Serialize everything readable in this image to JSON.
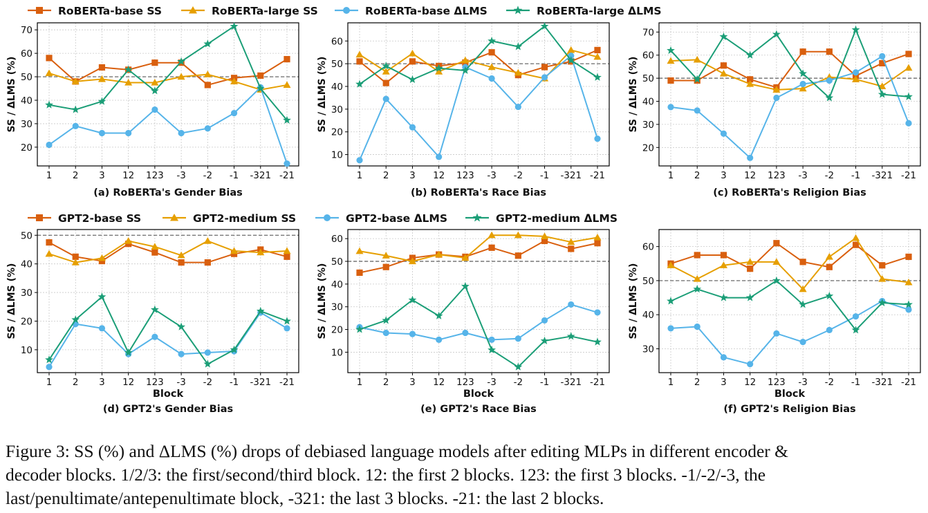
{
  "colors": {
    "orange": "#d95f0e",
    "gold": "#e69f00",
    "blue": "#56b4e9",
    "green": "#1b9e77",
    "refline": "#777777",
    "grid": "#c8c8c8"
  },
  "legends": [
    {
      "entries": [
        {
          "label": "RoBERTa-base SS",
          "color": "#d95f0e",
          "marker": "square"
        },
        {
          "label": "RoBERTa-large SS",
          "color": "#e69f00",
          "marker": "triangle"
        },
        {
          "label": "RoBERTa-base ΔLMS",
          "color": "#56b4e9",
          "marker": "circle"
        },
        {
          "label": "RoBERTa-large ΔLMS",
          "color": "#1b9e77",
          "marker": "star"
        }
      ]
    },
    {
      "entries": [
        {
          "label": "GPT2-base SS",
          "color": "#d95f0e",
          "marker": "square"
        },
        {
          "label": "GPT2-medium SS",
          "color": "#e69f00",
          "marker": "triangle"
        },
        {
          "label": "GPT2-base ΔLMS",
          "color": "#56b4e9",
          "marker": "circle"
        },
        {
          "label": "GPT2-medium ΔLMS",
          "color": "#1b9e77",
          "marker": "star"
        }
      ]
    }
  ],
  "chart_data": [
    {
      "type": "line",
      "title": "(a) RoBERTa's Gender Bias",
      "xlabel": "",
      "ylabel": "SS / ΔLMS (%)",
      "categories": [
        "1",
        "2",
        "3",
        "12",
        "123",
        "-3",
        "-2",
        "-1",
        "-321",
        "-21"
      ],
      "ylim": [
        12,
        73
      ],
      "yticks": [
        20,
        30,
        40,
        50,
        60,
        70
      ],
      "reference_line": 50,
      "grid": true,
      "series": [
        {
          "name": "RoBERTa-base SS",
          "values": [
            58,
            48,
            54,
            53,
            56,
            56,
            46.5,
            49.5,
            50.5,
            57.5
          ]
        },
        {
          "name": "RoBERTa-large SS",
          "values": [
            51.5,
            48,
            49,
            47.5,
            47.5,
            50,
            51,
            48,
            44.5,
            46.5
          ]
        },
        {
          "name": "RoBERTa-base ΔLMS",
          "values": [
            21,
            29,
            26,
            26,
            36,
            26,
            28,
            34.5,
            45.5,
            13
          ]
        },
        {
          "name": "RoBERTa-large ΔLMS",
          "values": [
            38,
            36,
            39.5,
            53,
            44,
            56.5,
            64,
            71.5,
            45,
            31.5
          ]
        }
      ]
    },
    {
      "type": "line",
      "title": "(b) RoBERTa's Race Bias",
      "xlabel": "",
      "ylabel": "SS / ΔLMS (%)",
      "categories": [
        "1",
        "2",
        "3",
        "12",
        "123",
        "-3",
        "-2",
        "-1",
        "-321",
        "-21"
      ],
      "ylim": [
        5,
        68
      ],
      "yticks": [
        10,
        20,
        30,
        40,
        50,
        60
      ],
      "reference_line": 50,
      "grid": true,
      "series": [
        {
          "name": "RoBERTa-base SS",
          "values": [
            51,
            41.5,
            51,
            49,
            50.5,
            55,
            45,
            48.5,
            51,
            56
          ]
        },
        {
          "name": "RoBERTa-large SS",
          "values": [
            54,
            46.5,
            54.5,
            46.5,
            51.5,
            48.5,
            46,
            43.5,
            56,
            53
          ]
        },
        {
          "name": "RoBERTa-base ΔLMS",
          "values": [
            7.5,
            34.5,
            22,
            9,
            48.5,
            43.5,
            31,
            44,
            53.5,
            17
          ]
        },
        {
          "name": "RoBERTa-large ΔLMS",
          "values": [
            41,
            49,
            43,
            48,
            47,
            60,
            57.5,
            66.5,
            51.5,
            44
          ]
        }
      ]
    },
    {
      "type": "line",
      "title": "(c) RoBERTa's Religion Bias",
      "xlabel": "",
      "ylabel": "SS / ΔLMS (%)",
      "categories": [
        "1",
        "2",
        "3",
        "12",
        "123",
        "-3",
        "-2",
        "-1",
        "-321",
        "-21"
      ],
      "ylim": [
        12,
        74
      ],
      "yticks": [
        20,
        30,
        40,
        50,
        60,
        70
      ],
      "reference_line": 50,
      "grid": true,
      "series": [
        {
          "name": "RoBERTa-base SS",
          "values": [
            49,
            49,
            55.5,
            49.5,
            46,
            61.5,
            61.5,
            51,
            56.5,
            60.5
          ]
        },
        {
          "name": "RoBERTa-large SS",
          "values": [
            57.5,
            58,
            52,
            47.5,
            45,
            45.5,
            50.5,
            49.5,
            46.5,
            54.5
          ]
        },
        {
          "name": "RoBERTa-base ΔLMS",
          "values": [
            37.5,
            36,
            26,
            15.5,
            41.5,
            47.5,
            49,
            52.5,
            59.5,
            30.5
          ]
        },
        {
          "name": "RoBERTa-large ΔLMS",
          "values": [
            62,
            49.5,
            68,
            60,
            69,
            52,
            41.5,
            71,
            43,
            42
          ]
        }
      ]
    },
    {
      "type": "line",
      "title": "(d) GPT2's Gender Bias",
      "xlabel": "Block",
      "ylabel": "SS / ΔLMS (%)",
      "categories": [
        "1",
        "2",
        "3",
        "12",
        "123",
        "-3",
        "-2",
        "-1",
        "-321",
        "-21"
      ],
      "ylim": [
        2,
        52
      ],
      "yticks": [
        10,
        20,
        30,
        40,
        50
      ],
      "reference_line": 50,
      "grid": true,
      "series": [
        {
          "name": "GPT2-base SS",
          "values": [
            47.5,
            42.5,
            41,
            47,
            44,
            40.5,
            40.5,
            43.5,
            45,
            42.5
          ]
        },
        {
          "name": "GPT2-medium SS",
          "values": [
            43.5,
            40.5,
            42,
            48,
            46,
            43,
            48,
            44.5,
            44,
            44.5
          ]
        },
        {
          "name": "GPT2-base ΔLMS",
          "values": [
            4,
            19,
            17.5,
            8.5,
            14.5,
            8.5,
            9,
            9.5,
            23,
            17.5
          ]
        },
        {
          "name": "GPT2-medium ΔLMS",
          "values": [
            6.5,
            20.5,
            28.5,
            9,
            24,
            18,
            5,
            10,
            23.5,
            20
          ]
        }
      ]
    },
    {
      "type": "line",
      "title": "(e) GPT2's Race Bias",
      "xlabel": "Block",
      "ylabel": "SS / ΔLMS (%)",
      "categories": [
        "1",
        "2",
        "3",
        "12",
        "123",
        "-3",
        "-2",
        "-1",
        "-321",
        "-21"
      ],
      "ylim": [
        1,
        64
      ],
      "yticks": [
        10,
        20,
        30,
        40,
        50,
        60
      ],
      "reference_line": 50,
      "grid": true,
      "series": [
        {
          "name": "GPT2-base SS",
          "values": [
            45,
            47.5,
            51.5,
            53,
            52,
            56,
            52.5,
            59,
            55.5,
            58
          ]
        },
        {
          "name": "GPT2-medium SS",
          "values": [
            54.5,
            52.5,
            50,
            53,
            51.5,
            61.5,
            61.5,
            61,
            58.5,
            60.5
          ]
        },
        {
          "name": "GPT2-base ΔLMS",
          "values": [
            21,
            18.5,
            18,
            15.5,
            18.5,
            15.5,
            16,
            24,
            31,
            27.5
          ]
        },
        {
          "name": "GPT2-medium ΔLMS",
          "values": [
            20,
            24,
            33,
            26,
            39,
            11,
            3.5,
            15,
            17,
            14.5
          ]
        }
      ]
    },
    {
      "type": "line",
      "title": "(f) GPT2's Religion Bias",
      "xlabel": "Block",
      "ylabel": "SS / ΔLMS (%)",
      "categories": [
        "1",
        "2",
        "3",
        "12",
        "123",
        "-3",
        "-2",
        "-1",
        "-321",
        "-21"
      ],
      "ylim": [
        23,
        65
      ],
      "yticks": [
        30,
        40,
        50,
        60
      ],
      "reference_line": 50,
      "grid": true,
      "series": [
        {
          "name": "GPT2-base SS",
          "values": [
            55,
            57.5,
            57.5,
            53.5,
            61,
            55.5,
            54,
            60.5,
            54.5,
            57
          ]
        },
        {
          "name": "GPT2-medium SS",
          "values": [
            54.5,
            50.5,
            54.5,
            55.5,
            55.5,
            47.5,
            57,
            62.5,
            50.5,
            49.5
          ]
        },
        {
          "name": "GPT2-base ΔLMS",
          "values": [
            36,
            36.5,
            27.5,
            25.5,
            34.5,
            32,
            35.5,
            39.5,
            44,
            41.5
          ]
        },
        {
          "name": "GPT2-medium ΔLMS",
          "values": [
            44,
            47.5,
            45,
            45,
            50,
            43,
            45.5,
            35.5,
            43.5,
            43
          ]
        }
      ]
    }
  ],
  "caption": {
    "line1": "Figure 3: SS (%) and ΔLMS (%) drops of debiased language models after editing MLPs in different encoder &",
    "line2": "decoder blocks. 1/2/3: the first/second/third block. 12: the first 2 blocks. 123: the first 3 blocks. -1/-2/-3, the",
    "line3": "last/penultimate/antepenultimate block, -321: the last 3 blocks. -21: the last 2 blocks."
  }
}
